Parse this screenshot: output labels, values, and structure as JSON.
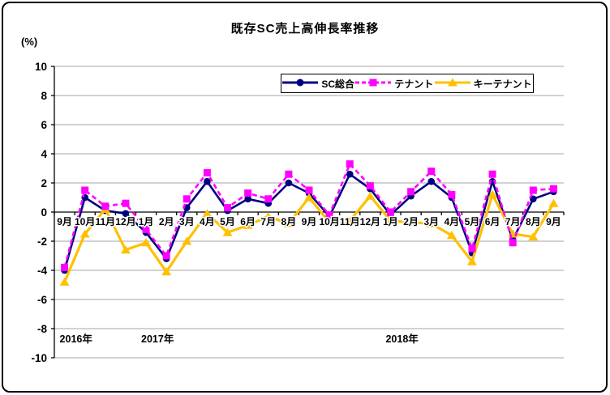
{
  "window": {
    "title": "既存SC売上高伸長率推移",
    "unit_label": "(%)"
  },
  "chart_data": {
    "type": "line",
    "title": "既存SC売上高伸長率推移",
    "ylabel": "(%)",
    "ylim": [
      -10,
      10
    ],
    "ytick_step": 2,
    "yticks": [
      10,
      8,
      6,
      4,
      2,
      0,
      -2,
      -4,
      -6,
      -8,
      -10
    ],
    "grid": true,
    "legend_position": "top-center-inside",
    "categories": [
      "9月",
      "10月",
      "11月",
      "12月",
      "1月",
      "2月",
      "3月",
      "4月",
      "5月",
      "6月",
      "7月",
      "8月",
      "9月",
      "10月",
      "11月",
      "12月",
      "1月",
      "2月",
      "3月",
      "4月",
      "5月",
      "6月",
      "7月",
      "8月",
      "9月"
    ],
    "year_groups": [
      {
        "label": "2016年",
        "start_index": 0
      },
      {
        "label": "2017年",
        "start_index": 4
      },
      {
        "label": "2018年",
        "start_index": 16
      }
    ],
    "series": [
      {
        "name": "SC総合",
        "color": "#000080",
        "line": "solid",
        "marker": "circle",
        "values": [
          -4.0,
          1.0,
          0.1,
          -0.1,
          -1.4,
          -3.2,
          0.3,
          2.1,
          0.1,
          0.9,
          0.6,
          2.0,
          1.3,
          -0.3,
          2.6,
          1.6,
          -0.2,
          1.1,
          2.1,
          1.0,
          -2.8,
          2.1,
          -1.9,
          0.9,
          1.4
        ]
      },
      {
        "name": "テナント",
        "color": "#FF00FF",
        "line": "dashed",
        "marker": "square",
        "values": [
          -3.8,
          1.5,
          0.4,
          0.6,
          -1.2,
          -3.0,
          0.9,
          2.7,
          0.3,
          1.3,
          0.9,
          2.6,
          1.5,
          -0.2,
          3.3,
          1.8,
          0.0,
          1.4,
          2.8,
          1.2,
          -2.5,
          2.6,
          -2.1,
          1.5,
          1.6
        ]
      },
      {
        "name": "キーテナント",
        "color": "#FFC000",
        "line": "solid",
        "marker": "triangle",
        "values": [
          -4.8,
          -1.5,
          0.2,
          -2.6,
          -2.1,
          -4.1,
          -2.0,
          -0.1,
          -1.4,
          -0.9,
          -0.3,
          -0.8,
          1.0,
          -0.7,
          -0.6,
          1.1,
          -0.6,
          -0.7,
          -0.8,
          -1.6,
          -3.4,
          1.2,
          -1.5,
          -1.7,
          0.6
        ]
      }
    ]
  },
  "colors": {
    "grid": "#A6A6A6",
    "axis": "#000000",
    "text": "#000000",
    "background": "#FFFFFF",
    "frame_border": "#000000"
  }
}
